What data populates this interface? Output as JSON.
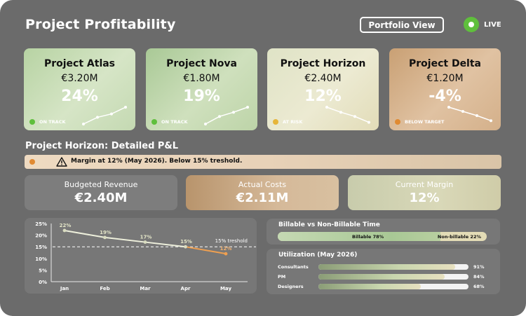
{
  "header": {
    "title": "Project Profitability",
    "portfolio_button": "Portfolio View",
    "live_label": "LIVE"
  },
  "colors": {
    "green": "#5fbf3c",
    "amber": "#e6b53a",
    "orange": "#e08a32"
  },
  "projects": [
    {
      "name": "Project Atlas",
      "amount": "€3.20M",
      "margin": "24%",
      "status": "ON TRACK",
      "status_color": "#5fbf3c",
      "trend": "up",
      "trend_values": [
        0,
        0.4,
        0.6,
        1
      ]
    },
    {
      "name": "Project Nova",
      "amount": "€1.80M",
      "margin": "19%",
      "status": "ON TRACK",
      "status_color": "#5fbf3c",
      "trend": "up",
      "trend_values": [
        0,
        0.45,
        0.7,
        1
      ]
    },
    {
      "name": "Project Horizon",
      "amount": "€2.40M",
      "margin": "12%",
      "status": "AT RISK",
      "status_color": "#e6b53a",
      "trend": "down",
      "trend_values": [
        1,
        0.7,
        0.45,
        0.1
      ]
    },
    {
      "name": "Project Delta",
      "amount": "€1.20M",
      "margin": "-4%",
      "status": "BELOW TARGET",
      "status_color": "#e08a32",
      "trend": "down",
      "trend_values": [
        1,
        0.75,
        0.5,
        0.2
      ]
    }
  ],
  "detail": {
    "title": "Project Horizon: Detailed P&L",
    "alert": "Margin at 12% (May 2026). Below 15% treshold.",
    "kpis": [
      {
        "label": "Budgeted Revenue",
        "value": "€2.40M"
      },
      {
        "label": "Actual Costs",
        "value": "€2.11M"
      },
      {
        "label": "Current Margin",
        "value": "12%"
      }
    ]
  },
  "chart_data": {
    "type": "line",
    "categories": [
      "Jan",
      "Feb",
      "Mar",
      "Apr",
      "May"
    ],
    "series": [
      {
        "values": [
          22,
          19,
          17,
          15,
          12
        ]
      }
    ],
    "data_labels": [
      "22%",
      "19%",
      "17%",
      "15%",
      "12%"
    ],
    "yticks": [
      "0%",
      "5%",
      "10%",
      "15%",
      "20%",
      "25%"
    ],
    "ylim": [
      0,
      25
    ],
    "threshold": {
      "value": 15,
      "label": "15% treshold"
    },
    "grid": false
  },
  "billable": {
    "title": "Billable vs Non-Billable Time",
    "billable_label": "Billable 78%",
    "billable_fraction": 0.78,
    "nonbillable_label": "Non-billable 22%"
  },
  "utilization": {
    "title": "Utilization (May 2026)",
    "rows": [
      {
        "label": "Consultants",
        "pct": "91%",
        "value": 0.91
      },
      {
        "label": "PM",
        "pct": "84%",
        "value": 0.84
      },
      {
        "label": "Designers",
        "pct": "68%",
        "value": 0.68
      }
    ]
  }
}
